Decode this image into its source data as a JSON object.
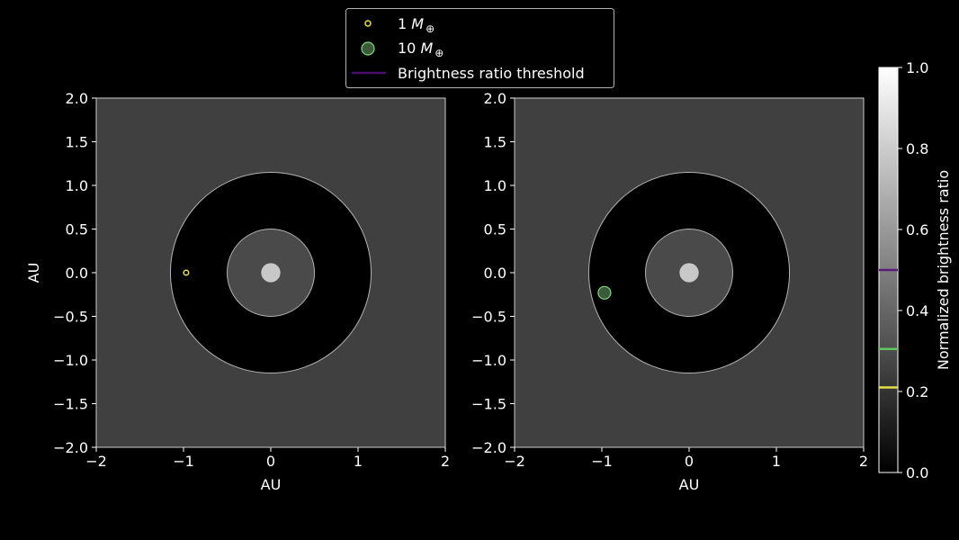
{
  "colors": {
    "background": "#000000",
    "panel": "#404040",
    "inner_ring_fill": "#4a4a4a",
    "ring_stroke": "#b3b3b3",
    "star": "#c8c8c8",
    "planet_1": "#e8e04a",
    "planet_10_edge": "#7dd87d",
    "planet_10_fill": "#3a5a3a",
    "threshold": "#4b0f6b",
    "cbar_mark_1": "#e8e04a",
    "cbar_mark_10": "#5cc95c",
    "cbar_mark_threshold": "#5a1a7a"
  },
  "legend": {
    "items": [
      {
        "label_prefix": "1 ",
        "label_math": "M",
        "label_sub": "⊕",
        "marker": "small-open-circle"
      },
      {
        "label_prefix": "10 ",
        "label_math": "M",
        "label_sub": "⊕",
        "marker": "large-filled-circle"
      },
      {
        "label": "Brightness ratio threshold",
        "marker": "line"
      }
    ],
    "placement": "top-center"
  },
  "colorbar": {
    "label": "Normalized brightness ratio",
    "ticks": [
      "0.0",
      "0.2",
      "0.4",
      "0.6",
      "0.8",
      "1.0"
    ],
    "range": [
      0,
      1
    ],
    "marks": [
      {
        "name": "threshold",
        "value": 0.5
      },
      {
        "name": "10 M⊕",
        "value": 0.305
      },
      {
        "name": "1 M⊕",
        "value": 0.21
      }
    ]
  },
  "chart_data": [
    {
      "type": "scatter",
      "xlabel": "AU",
      "ylabel": "AU",
      "xlim": [
        -2,
        2
      ],
      "ylim": [
        -2,
        2
      ],
      "xticks": [
        "−2",
        "−1",
        "0",
        "1",
        "2"
      ],
      "yticks": [
        "2.0",
        "1.5",
        "1.0",
        "0.5",
        "0.0",
        "−0.5",
        "−1.0",
        "−1.5",
        "−2.0"
      ],
      "rings": [
        1.15,
        0.5
      ],
      "star": {
        "x": 0,
        "y": 0,
        "r": 0.11
      },
      "points": [
        {
          "series": "1 M⊕",
          "x": -0.97,
          "y": 0.0
        }
      ]
    },
    {
      "type": "scatter",
      "xlabel": "AU",
      "ylabel": "",
      "xlim": [
        -2,
        2
      ],
      "ylim": [
        -2,
        2
      ],
      "xticks": [
        "−2",
        "−1",
        "0",
        "1",
        "2"
      ],
      "yticks": [
        "2.0",
        "1.5",
        "1.0",
        "0.5",
        "0.0",
        "−0.5",
        "−1.0",
        "−1.5",
        "−2.0"
      ],
      "rings": [
        1.15,
        0.5
      ],
      "star": {
        "x": 0,
        "y": 0,
        "r": 0.11
      },
      "points": [
        {
          "series": "10 M⊕",
          "x": -0.97,
          "y": -0.23
        }
      ]
    }
  ]
}
